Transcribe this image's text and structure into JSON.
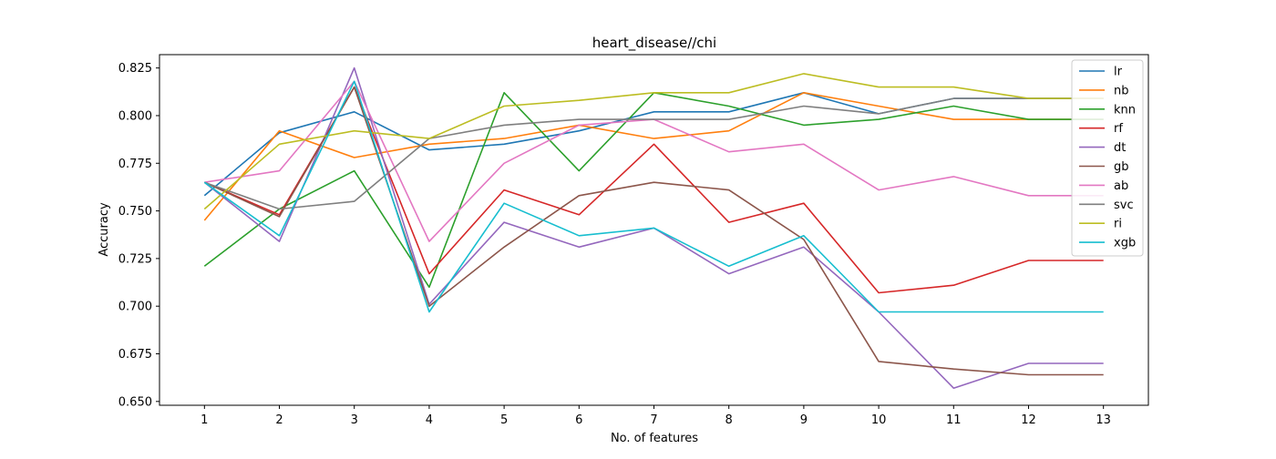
{
  "chart_data": {
    "type": "line",
    "title": "heart_disease//chi",
    "xlabel": "No. of features",
    "ylabel": "Accuracy",
    "x": [
      1,
      2,
      3,
      4,
      5,
      6,
      7,
      8,
      9,
      10,
      11,
      12,
      13
    ],
    "xlim": [
      0.4,
      13.6
    ],
    "ylim": [
      0.648,
      0.832
    ],
    "yticks": [
      0.65,
      0.675,
      0.7,
      0.725,
      0.75,
      0.775,
      0.8,
      0.825
    ],
    "ytick_labels": [
      "0.650",
      "0.675",
      "0.700",
      "0.725",
      "0.750",
      "0.775",
      "0.800",
      "0.825"
    ],
    "grid": false,
    "legend_position": "top-right",
    "series": [
      {
        "name": "lr",
        "color": "#1f77b4",
        "values": [
          0.758,
          0.791,
          0.802,
          0.782,
          0.785,
          0.792,
          0.802,
          0.802,
          0.812,
          0.801,
          0.809,
          0.809,
          0.809
        ]
      },
      {
        "name": "nb",
        "color": "#ff7f0e",
        "values": [
          0.745,
          0.792,
          0.778,
          0.785,
          0.788,
          0.795,
          0.788,
          0.792,
          0.812,
          0.805,
          0.798,
          0.798,
          0.798
        ]
      },
      {
        "name": "knn",
        "color": "#2ca02c",
        "values": [
          0.721,
          0.751,
          0.771,
          0.71,
          0.812,
          0.771,
          0.812,
          0.805,
          0.795,
          0.798,
          0.805,
          0.798,
          0.798
        ]
      },
      {
        "name": "rf",
        "color": "#d62728",
        "values": [
          0.765,
          0.748,
          0.815,
          0.717,
          0.761,
          0.748,
          0.785,
          0.744,
          0.754,
          0.707,
          0.711,
          0.724,
          0.724
        ]
      },
      {
        "name": "dt",
        "color": "#9467bd",
        "values": [
          0.765,
          0.734,
          0.825,
          0.701,
          0.744,
          0.731,
          0.741,
          0.717,
          0.731,
          0.697,
          0.657,
          0.67,
          0.67
        ]
      },
      {
        "name": "gb",
        "color": "#8c564b",
        "values": [
          0.765,
          0.747,
          0.815,
          0.7,
          0.731,
          0.758,
          0.765,
          0.761,
          0.735,
          0.671,
          0.667,
          0.664,
          0.664
        ]
      },
      {
        "name": "ab",
        "color": "#e377c2",
        "values": [
          0.765,
          0.771,
          0.818,
          0.734,
          0.775,
          0.795,
          0.798,
          0.781,
          0.785,
          0.761,
          0.768,
          0.758,
          0.758
        ]
      },
      {
        "name": "svc",
        "color": "#7f7f7f",
        "values": [
          0.765,
          0.751,
          0.755,
          0.788,
          0.795,
          0.798,
          0.798,
          0.798,
          0.805,
          0.801,
          0.809,
          0.809,
          0.809
        ]
      },
      {
        "name": "ri",
        "color": "#bcbd22",
        "values": [
          0.751,
          0.785,
          0.792,
          0.788,
          0.805,
          0.808,
          0.812,
          0.812,
          0.822,
          0.815,
          0.815,
          0.809,
          0.809
        ]
      },
      {
        "name": "xgb",
        "color": "#17becf",
        "values": [
          0.765,
          0.737,
          0.818,
          0.697,
          0.754,
          0.737,
          0.741,
          0.721,
          0.737,
          0.697,
          0.697,
          0.697,
          0.697
        ]
      }
    ]
  }
}
